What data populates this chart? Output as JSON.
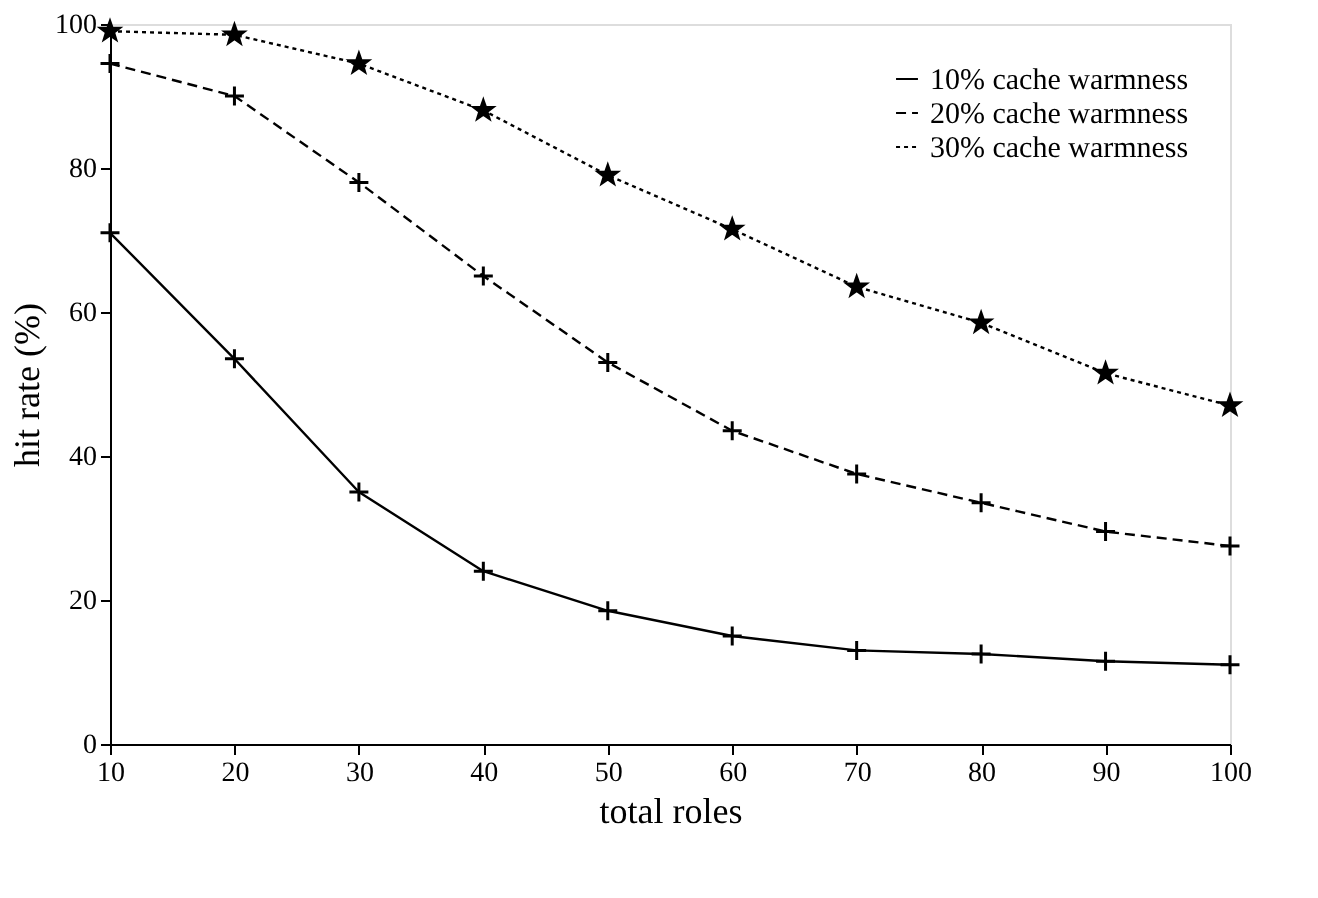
{
  "chart_data": {
    "type": "line",
    "xlabel": "total roles",
    "ylabel": "hit rate (%)",
    "x": [
      10,
      20,
      30,
      40,
      50,
      60,
      70,
      80,
      90,
      100
    ],
    "series": [
      {
        "name": "10% cache warmness",
        "color": "#000000",
        "marker": "cross",
        "line_style": "solid",
        "values": [
          71,
          53.5,
          35,
          24,
          18.5,
          15,
          13,
          12.5,
          11.5,
          11
        ]
      },
      {
        "name": "20% cache warmness",
        "color": "#000000",
        "marker": "cross",
        "line_style": "dashed",
        "values": [
          94.5,
          90,
          78,
          65,
          53,
          43.5,
          37.5,
          33.5,
          29.5,
          27.5
        ]
      },
      {
        "name": "30% cache warmness",
        "color": "#000000",
        "marker": "star",
        "line_style": "dotted",
        "values": [
          99,
          98.5,
          94.5,
          88,
          79,
          71.5,
          63.5,
          58.5,
          51.5,
          47
        ]
      }
    ],
    "xlim": [
      10,
      100
    ],
    "ylim": [
      0,
      100
    ],
    "xticks": [
      10,
      20,
      30,
      40,
      50,
      60,
      70,
      80,
      90,
      100
    ],
    "yticks": [
      0,
      20,
      40,
      60,
      80,
      100
    ],
    "grid": false,
    "legend": "top right"
  }
}
